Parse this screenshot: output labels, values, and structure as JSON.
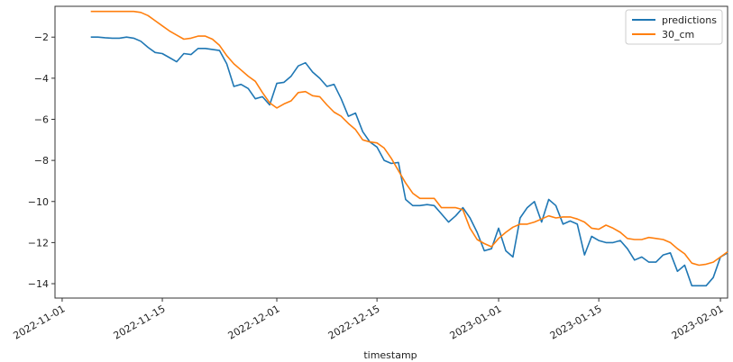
{
  "chart_data": {
    "type": "line",
    "xlabel": "timestamp",
    "ylabel": "",
    "x_type": "date",
    "xlim": [
      "2022-10-31",
      "2023-02-02"
    ],
    "ylim": [
      -14.7,
      -0.5
    ],
    "x_ticks": [
      "2022-11-01",
      "2022-11-15",
      "2022-12-01",
      "2022-12-15",
      "2023-01-01",
      "2023-01-15",
      "2023-02-01"
    ],
    "y_ticks": [
      -2,
      -4,
      -6,
      -8,
      -10,
      -12,
      -14
    ],
    "grid": false,
    "legend_position": "top-right",
    "series": [
      {
        "name": "predictions",
        "color": "#1f77b4",
        "points": [
          [
            "2022-11-05",
            -2.0
          ],
          [
            "2022-11-06",
            -2.0
          ],
          [
            "2022-11-07",
            -2.03
          ],
          [
            "2022-11-08",
            -2.05
          ],
          [
            "2022-11-09",
            -2.05
          ],
          [
            "2022-11-10",
            -2.0
          ],
          [
            "2022-11-11",
            -2.05
          ],
          [
            "2022-11-12",
            -2.2
          ],
          [
            "2022-11-13",
            -2.5
          ],
          [
            "2022-11-14",
            -2.75
          ],
          [
            "2022-11-15",
            -2.8
          ],
          [
            "2022-11-16",
            -3.0
          ],
          [
            "2022-11-17",
            -3.2
          ],
          [
            "2022-11-18",
            -2.8
          ],
          [
            "2022-11-19",
            -2.85
          ],
          [
            "2022-11-20",
            -2.55
          ],
          [
            "2022-11-21",
            -2.55
          ],
          [
            "2022-11-22",
            -2.6
          ],
          [
            "2022-11-23",
            -2.65
          ],
          [
            "2022-11-24",
            -3.3
          ],
          [
            "2022-11-25",
            -4.4
          ],
          [
            "2022-11-26",
            -4.3
          ],
          [
            "2022-11-27",
            -4.5
          ],
          [
            "2022-11-28",
            -5.0
          ],
          [
            "2022-11-29",
            -4.9
          ],
          [
            "2022-11-30",
            -5.3
          ],
          [
            "2022-12-01",
            -4.25
          ],
          [
            "2022-12-02",
            -4.2
          ],
          [
            "2022-12-03",
            -3.9
          ],
          [
            "2022-12-04",
            -3.4
          ],
          [
            "2022-12-05",
            -3.25
          ],
          [
            "2022-12-06",
            -3.7
          ],
          [
            "2022-12-07",
            -4.0
          ],
          [
            "2022-12-08",
            -4.4
          ],
          [
            "2022-12-09",
            -4.3
          ],
          [
            "2022-12-10",
            -5.0
          ],
          [
            "2022-12-11",
            -5.85
          ],
          [
            "2022-12-12",
            -5.7
          ],
          [
            "2022-12-13",
            -6.6
          ],
          [
            "2022-12-14",
            -7.1
          ],
          [
            "2022-12-15",
            -7.35
          ],
          [
            "2022-12-16",
            -8.0
          ],
          [
            "2022-12-17",
            -8.15
          ],
          [
            "2022-12-18",
            -8.1
          ],
          [
            "2022-12-19",
            -9.9
          ],
          [
            "2022-12-20",
            -10.2
          ],
          [
            "2022-12-21",
            -10.2
          ],
          [
            "2022-12-22",
            -10.15
          ],
          [
            "2022-12-23",
            -10.2
          ],
          [
            "2022-12-24",
            -10.6
          ],
          [
            "2022-12-25",
            -11.0
          ],
          [
            "2022-12-26",
            -10.7
          ],
          [
            "2022-12-27",
            -10.3
          ],
          [
            "2022-12-28",
            -10.8
          ],
          [
            "2022-12-29",
            -11.5
          ],
          [
            "2022-12-30",
            -12.4
          ],
          [
            "2022-12-31",
            -12.3
          ],
          [
            "2023-01-01",
            -11.3
          ],
          [
            "2023-01-02",
            -12.4
          ],
          [
            "2023-01-03",
            -12.7
          ],
          [
            "2023-01-04",
            -10.8
          ],
          [
            "2023-01-05",
            -10.3
          ],
          [
            "2023-01-06",
            -10.0
          ],
          [
            "2023-01-07",
            -11.0
          ],
          [
            "2023-01-08",
            -9.9
          ],
          [
            "2023-01-09",
            -10.2
          ],
          [
            "2023-01-10",
            -11.1
          ],
          [
            "2023-01-11",
            -10.95
          ],
          [
            "2023-01-12",
            -11.1
          ],
          [
            "2023-01-13",
            -12.6
          ],
          [
            "2023-01-14",
            -11.7
          ],
          [
            "2023-01-15",
            -11.9
          ],
          [
            "2023-01-16",
            -12.0
          ],
          [
            "2023-01-17",
            -12.0
          ],
          [
            "2023-01-18",
            -11.9
          ],
          [
            "2023-01-19",
            -12.3
          ],
          [
            "2023-01-20",
            -12.85
          ],
          [
            "2023-01-21",
            -12.7
          ],
          [
            "2023-01-22",
            -12.95
          ],
          [
            "2023-01-23",
            -12.95
          ],
          [
            "2023-01-24",
            -12.6
          ],
          [
            "2023-01-25",
            -12.5
          ],
          [
            "2023-01-26",
            -13.4
          ],
          [
            "2023-01-27",
            -13.1
          ],
          [
            "2023-01-28",
            -14.1
          ],
          [
            "2023-01-29",
            -14.1
          ],
          [
            "2023-01-30",
            -14.1
          ],
          [
            "2023-01-31",
            -13.7
          ],
          [
            "2023-02-01",
            -12.7
          ],
          [
            "2023-02-02",
            -12.5
          ]
        ]
      },
      {
        "name": "30_cm",
        "color": "#ff7f0e",
        "points": [
          [
            "2022-11-05",
            -0.75
          ],
          [
            "2022-11-07",
            -0.75
          ],
          [
            "2022-11-09",
            -0.75
          ],
          [
            "2022-11-11",
            -0.75
          ],
          [
            "2022-11-12",
            -0.8
          ],
          [
            "2022-11-13",
            -0.95
          ],
          [
            "2022-11-14",
            -1.2
          ],
          [
            "2022-11-15",
            -1.45
          ],
          [
            "2022-11-16",
            -1.7
          ],
          [
            "2022-11-17",
            -1.9
          ],
          [
            "2022-11-18",
            -2.1
          ],
          [
            "2022-11-19",
            -2.05
          ],
          [
            "2022-11-20",
            -1.95
          ],
          [
            "2022-11-21",
            -1.95
          ],
          [
            "2022-11-22",
            -2.1
          ],
          [
            "2022-11-23",
            -2.4
          ],
          [
            "2022-11-24",
            -2.9
          ],
          [
            "2022-11-25",
            -3.3
          ],
          [
            "2022-11-26",
            -3.6
          ],
          [
            "2022-11-27",
            -3.9
          ],
          [
            "2022-11-28",
            -4.15
          ],
          [
            "2022-11-29",
            -4.7
          ],
          [
            "2022-11-30",
            -5.2
          ],
          [
            "2022-12-01",
            -5.45
          ],
          [
            "2022-12-02",
            -5.25
          ],
          [
            "2022-12-03",
            -5.1
          ],
          [
            "2022-12-04",
            -4.7
          ],
          [
            "2022-12-05",
            -4.65
          ],
          [
            "2022-12-06",
            -4.85
          ],
          [
            "2022-12-07",
            -4.9
          ],
          [
            "2022-12-08",
            -5.3
          ],
          [
            "2022-12-09",
            -5.65
          ],
          [
            "2022-12-10",
            -5.85
          ],
          [
            "2022-12-11",
            -6.2
          ],
          [
            "2022-12-12",
            -6.5
          ],
          [
            "2022-12-13",
            -7.0
          ],
          [
            "2022-12-14",
            -7.1
          ],
          [
            "2022-12-15",
            -7.15
          ],
          [
            "2022-12-16",
            -7.4
          ],
          [
            "2022-12-17",
            -7.9
          ],
          [
            "2022-12-18",
            -8.5
          ],
          [
            "2022-12-19",
            -9.1
          ],
          [
            "2022-12-20",
            -9.6
          ],
          [
            "2022-12-21",
            -9.85
          ],
          [
            "2022-12-22",
            -9.85
          ],
          [
            "2022-12-23",
            -9.85
          ],
          [
            "2022-12-24",
            -10.3
          ],
          [
            "2022-12-25",
            -10.3
          ],
          [
            "2022-12-26",
            -10.3
          ],
          [
            "2022-12-27",
            -10.4
          ],
          [
            "2022-12-28",
            -11.3
          ],
          [
            "2022-12-29",
            -11.85
          ],
          [
            "2022-12-30",
            -12.05
          ],
          [
            "2022-12-31",
            -12.2
          ],
          [
            "2023-01-01",
            -11.8
          ],
          [
            "2023-01-02",
            -11.5
          ],
          [
            "2023-01-03",
            -11.25
          ],
          [
            "2023-01-04",
            -11.1
          ],
          [
            "2023-01-05",
            -11.1
          ],
          [
            "2023-01-06",
            -11.0
          ],
          [
            "2023-01-07",
            -10.85
          ],
          [
            "2023-01-08",
            -10.7
          ],
          [
            "2023-01-09",
            -10.8
          ],
          [
            "2023-01-10",
            -10.75
          ],
          [
            "2023-01-11",
            -10.75
          ],
          [
            "2023-01-12",
            -10.85
          ],
          [
            "2023-01-13",
            -11.0
          ],
          [
            "2023-01-14",
            -11.3
          ],
          [
            "2023-01-15",
            -11.35
          ],
          [
            "2023-01-16",
            -11.15
          ],
          [
            "2023-01-17",
            -11.3
          ],
          [
            "2023-01-18",
            -11.5
          ],
          [
            "2023-01-19",
            -11.8
          ],
          [
            "2023-01-20",
            -11.85
          ],
          [
            "2023-01-21",
            -11.85
          ],
          [
            "2023-01-22",
            -11.75
          ],
          [
            "2023-01-23",
            -11.8
          ],
          [
            "2023-01-24",
            -11.85
          ],
          [
            "2023-01-25",
            -12.0
          ],
          [
            "2023-01-26",
            -12.3
          ],
          [
            "2023-01-27",
            -12.55
          ],
          [
            "2023-01-28",
            -13.0
          ],
          [
            "2023-01-29",
            -13.1
          ],
          [
            "2023-01-30",
            -13.05
          ],
          [
            "2023-01-31",
            -12.95
          ],
          [
            "2023-02-01",
            -12.7
          ],
          [
            "2023-02-02",
            -12.45
          ]
        ]
      }
    ]
  }
}
